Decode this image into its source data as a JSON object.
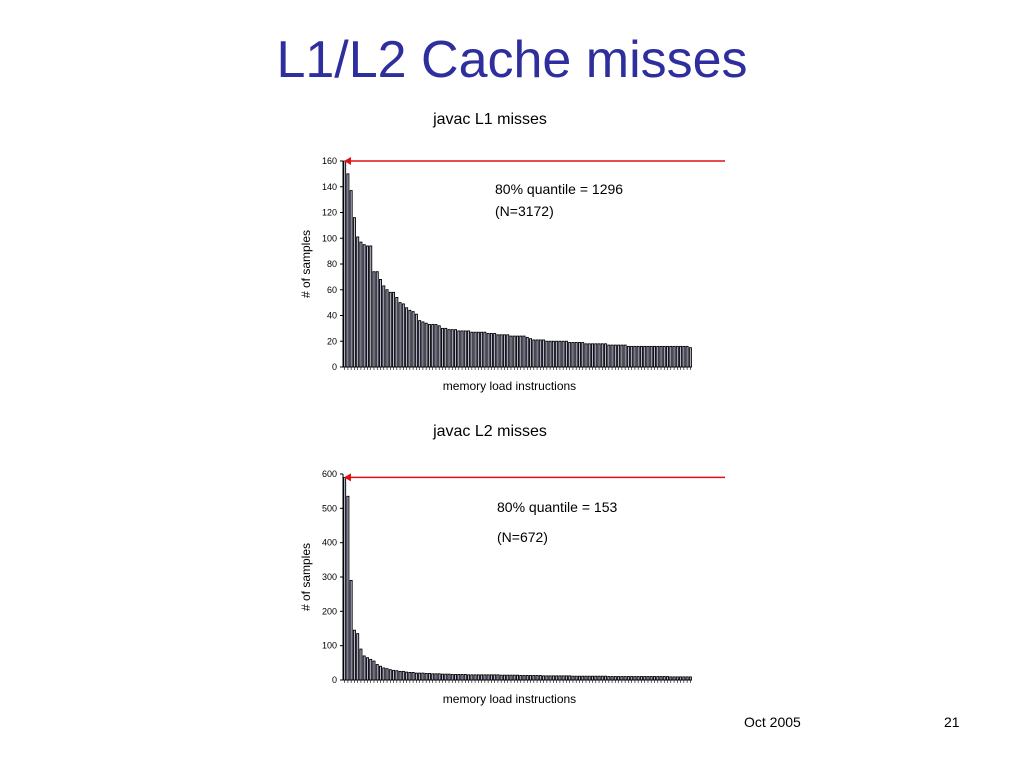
{
  "slide": {
    "title": "L1/L2 Cache misses",
    "footer_date": "Oct 2005",
    "page_number": "21"
  },
  "colors": {
    "title": "#2e2e9e",
    "bar_fill": "#b8b8d6",
    "bar_stroke": "#000000",
    "marker": "#e01010"
  },
  "chart_data": [
    {
      "type": "bar",
      "title": "javac L1 misses",
      "xlabel": "memory load instructions",
      "ylabel": "# of samples",
      "ylim": [
        0,
        160
      ],
      "yticks": [
        0,
        20,
        40,
        60,
        80,
        100,
        120,
        140,
        160
      ],
      "grid": false,
      "annotation": [
        "80% quantile = 1296",
        "(N=3172)"
      ],
      "values": [
        160,
        150,
        137,
        116,
        101,
        97,
        95,
        94,
        94,
        74,
        74,
        68,
        63,
        60,
        58,
        58,
        54,
        50,
        49,
        46,
        44,
        43,
        41,
        36,
        35,
        34,
        33,
        33,
        33,
        32,
        30,
        30,
        29,
        29,
        29,
        28,
        28,
        28,
        28,
        27,
        27,
        27,
        27,
        27,
        26,
        26,
        26,
        25,
        25,
        25,
        25,
        24,
        24,
        24,
        24,
        24,
        23,
        22,
        21,
        21,
        21,
        21,
        20,
        20,
        20,
        20,
        20,
        20,
        20,
        19,
        19,
        19,
        19,
        19,
        18,
        18,
        18,
        18,
        18,
        18,
        18,
        17,
        17,
        17,
        17,
        17,
        17,
        16,
        16,
        16,
        16,
        16,
        16,
        16,
        16,
        16,
        16,
        16,
        16,
        16,
        16,
        16,
        16,
        16,
        16,
        16,
        15
      ]
    },
    {
      "type": "bar",
      "title": "javac L2 misses",
      "xlabel": "memory load instructions",
      "ylabel": "# of samples",
      "ylim": [
        0,
        600
      ],
      "yticks": [
        0,
        100,
        200,
        300,
        400,
        500,
        600
      ],
      "grid": false,
      "annotation": [
        "80% quantile = 153",
        "(N=672)"
      ],
      "values": [
        590,
        535,
        290,
        145,
        135,
        90,
        70,
        65,
        60,
        55,
        45,
        40,
        35,
        33,
        30,
        28,
        27,
        25,
        25,
        23,
        22,
        22,
        20,
        20,
        20,
        19,
        19,
        18,
        18,
        18,
        17,
        17,
        17,
        16,
        16,
        16,
        16,
        16,
        15,
        15,
        15,
        15,
        15,
        15,
        15,
        15,
        15,
        15,
        14,
        14,
        14,
        14,
        14,
        14,
        13,
        13,
        13,
        13,
        13,
        13,
        13,
        12,
        12,
        12,
        12,
        12,
        12,
        12,
        12,
        12,
        11,
        11,
        11,
        11,
        11,
        11,
        11,
        11,
        11,
        11,
        11,
        10,
        10,
        10,
        10,
        10,
        10,
        10,
        10,
        10,
        10,
        10,
        10,
        10,
        10,
        10,
        10,
        10,
        10,
        10,
        9,
        9,
        9,
        9,
        9,
        9,
        9
      ]
    }
  ]
}
